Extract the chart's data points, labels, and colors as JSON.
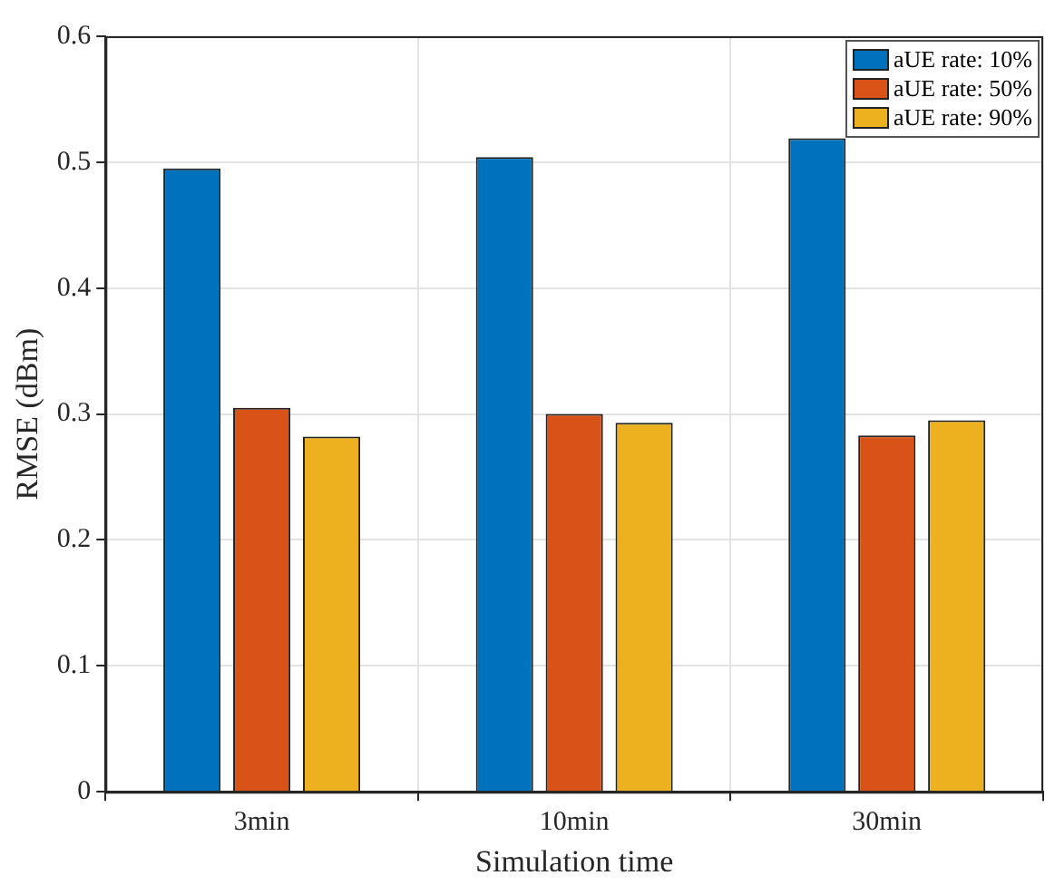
{
  "chart_data": {
    "type": "bar",
    "xlabel": "Simulation time",
    "ylabel": "RMSE (dBm)",
    "categories": [
      "3min",
      "10min",
      "30min"
    ],
    "series": [
      {
        "name": "aUE rate: 10%",
        "color": "#0072bd",
        "values": [
          0.495,
          0.504,
          0.519
        ]
      },
      {
        "name": "aUE rate: 50%",
        "color": "#d95319",
        "values": [
          0.305,
          0.3,
          0.283
        ]
      },
      {
        "name": "aUE rate: 90%",
        "color": "#edb120",
        "values": [
          0.282,
          0.293,
          0.295
        ]
      }
    ],
    "ylim": [
      0,
      0.6
    ],
    "yticks": [
      0,
      0.1,
      0.2,
      0.3,
      0.4,
      0.5,
      0.6
    ],
    "grid": true,
    "legend": "top right"
  }
}
